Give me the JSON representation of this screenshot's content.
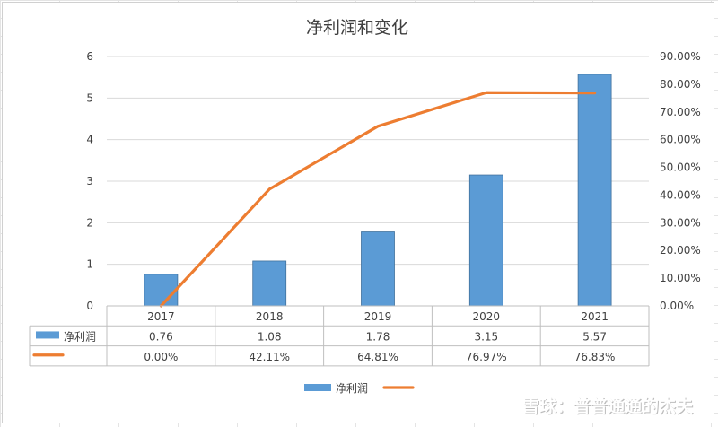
{
  "chart_data": {
    "type": "bar",
    "title": "净利润和变化",
    "categories": [
      "2017",
      "2018",
      "2019",
      "2020",
      "2021"
    ],
    "series": [
      {
        "name": "净利润",
        "kind": "bar",
        "axis": "left",
        "color": "#5b9bd5",
        "values": [
          0.76,
          1.08,
          1.78,
          3.15,
          5.57
        ],
        "labels": [
          "0.76",
          "1.08",
          "1.78",
          "3.15",
          "5.57"
        ]
      },
      {
        "name": "",
        "kind": "line",
        "axis": "right",
        "color": "#ed7d31",
        "values": [
          0.0,
          42.11,
          64.81,
          76.97,
          76.83
        ],
        "labels": [
          "0.00%",
          "42.11%",
          "64.81%",
          "76.97%",
          "76.83%"
        ]
      }
    ],
    "y_left": {
      "ylim": [
        0,
        6
      ],
      "ticks": [
        "0",
        "1",
        "2",
        "3",
        "4",
        "5",
        "6"
      ]
    },
    "y_right": {
      "ylim": [
        0,
        90
      ],
      "ticks": [
        "0.00%",
        "10.00%",
        "20.00%",
        "30.00%",
        "40.00%",
        "50.00%",
        "60.00%",
        "70.00%",
        "80.00%",
        "90.00%"
      ]
    },
    "grid": true,
    "data_table": true,
    "legend": "bottom"
  },
  "watermark": "雪球：普普通通的杰夫"
}
